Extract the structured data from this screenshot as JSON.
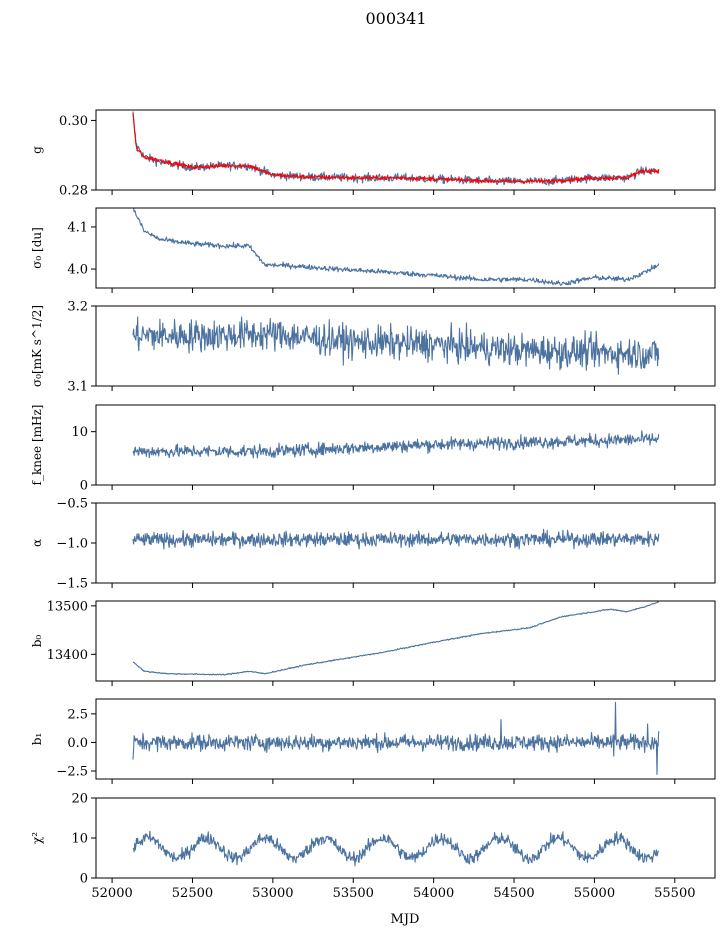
{
  "figure": {
    "title": "000341",
    "xlabel": "MJD"
  },
  "colors": {
    "main": "#4c72a0",
    "overlay": "#ff0000",
    "axes": "#000000"
  },
  "chart_data": [
    {
      "type": "line",
      "ylabel": "g",
      "xlim": [
        51900,
        55750
      ],
      "ylim": [
        0.28,
        0.303
      ],
      "yticks": [
        0.28,
        0.3
      ],
      "ytick_labels": [
        "0.28",
        "0.30"
      ],
      "series": [
        {
          "color": "#4c72a0",
          "x_range": [
            52130,
            55400
          ],
          "x": [
            52130,
            52150,
            52200,
            52300,
            52500,
            52700,
            52850,
            53000,
            53200,
            53500,
            53800,
            54100,
            54400,
            54700,
            55000,
            55200,
            55300,
            55400
          ],
          "y": [
            0.302,
            0.293,
            0.2895,
            0.288,
            0.2865,
            0.287,
            0.287,
            0.2843,
            0.2838,
            0.2835,
            0.2835,
            0.283,
            0.2825,
            0.2825,
            0.2835,
            0.2835,
            0.2855,
            0.2855
          ],
          "noise": 0.0006
        },
        {
          "color": "#ff0000",
          "x_range": [
            52130,
            55400
          ],
          "x": [
            52130,
            52150,
            52200,
            52300,
            52500,
            52700,
            52850,
            53000,
            53200,
            53500,
            53800,
            54100,
            54400,
            54700,
            55000,
            55200,
            55300,
            55400
          ],
          "y": [
            0.302,
            0.292,
            0.2895,
            0.2885,
            0.2865,
            0.287,
            0.287,
            0.2843,
            0.2838,
            0.2835,
            0.2835,
            0.283,
            0.2825,
            0.2825,
            0.2835,
            0.2835,
            0.2855,
            0.2855
          ],
          "noise": 0.0003
        }
      ]
    },
    {
      "type": "line",
      "ylabel": "σ₀ [du]",
      "xlim": [
        51900,
        55750
      ],
      "ylim": [
        3.955,
        4.145
      ],
      "yticks": [
        4.0,
        4.1
      ],
      "ytick_labels": [
        "4.0",
        "4.1"
      ],
      "series": [
        {
          "color": "#4c72a0",
          "x_range": [
            52130,
            55400
          ],
          "x": [
            52130,
            52200,
            52300,
            52500,
            52700,
            52850,
            52950,
            53100,
            53400,
            53700,
            54000,
            54300,
            54600,
            54800,
            55000,
            55200,
            55300,
            55400
          ],
          "y": [
            4.145,
            4.09,
            4.07,
            4.06,
            4.055,
            4.055,
            4.01,
            4.008,
            4.0,
            3.993,
            3.985,
            3.975,
            3.975,
            3.965,
            3.98,
            3.975,
            3.99,
            4.01
          ],
          "noise": 0.003
        }
      ]
    },
    {
      "type": "line",
      "ylabel": "σ₀[mK s^1/2]",
      "xlim": [
        51900,
        55750
      ],
      "ylim": [
        3.1,
        3.2
      ],
      "yticks": [
        3.1,
        3.2
      ],
      "ytick_labels": [
        "3.1",
        "3.2"
      ],
      "series": [
        {
          "color": "#4c72a0",
          "x_range": [
            52130,
            55400
          ],
          "x": [
            52130,
            52600,
            53000,
            53500,
            54000,
            54500,
            55000,
            55400
          ],
          "y": [
            3.163,
            3.163,
            3.165,
            3.155,
            3.152,
            3.145,
            3.142,
            3.14
          ],
          "noise": 0.01
        }
      ]
    },
    {
      "type": "line",
      "ylabel": "f_knee [mHz]",
      "xlim": [
        51900,
        55750
      ],
      "ylim": [
        0,
        15
      ],
      "yticks": [
        0,
        10
      ],
      "ytick_labels": [
        "0",
        "10"
      ],
      "series": [
        {
          "color": "#4c72a0",
          "x_range": [
            52130,
            55400
          ],
          "x": [
            52130,
            53000,
            54000,
            55400
          ],
          "y": [
            6.3,
            6.3,
            7.6,
            8.6
          ],
          "noise": 0.6
        }
      ]
    },
    {
      "type": "line",
      "ylabel": "α",
      "xlim": [
        51900,
        55750
      ],
      "ylim": [
        -1.5,
        -0.5
      ],
      "yticks": [
        -1.5,
        -1.0,
        -0.5
      ],
      "ytick_labels": [
        "−1.5",
        "−1.0",
        "−0.5"
      ],
      "series": [
        {
          "color": "#4c72a0",
          "x_range": [
            52130,
            55400
          ],
          "x": [
            52130,
            55400
          ],
          "y": [
            -0.96,
            -0.95
          ],
          "noise": 0.045
        }
      ]
    },
    {
      "type": "line",
      "ylabel": "b₀",
      "xlim": [
        51900,
        55750
      ],
      "ylim": [
        13345,
        13510
      ],
      "yticks": [
        13400,
        13500
      ],
      "ytick_labels": [
        "13400",
        "13500"
      ],
      "series": [
        {
          "color": "#4c72a0",
          "x_range": [
            52130,
            55400
          ],
          "x": [
            52130,
            52200,
            52350,
            52700,
            52850,
            52950,
            53200,
            53700,
            54000,
            54300,
            54600,
            54800,
            55000,
            55100,
            55200,
            55300,
            55400
          ],
          "y": [
            13385,
            13365,
            13360,
            13358,
            13365,
            13360,
            13378,
            13405,
            13425,
            13443,
            13455,
            13478,
            13488,
            13493,
            13488,
            13497,
            13508
          ],
          "noise": 0.6
        }
      ]
    },
    {
      "type": "line",
      "ylabel": "b₁",
      "xlim": [
        51900,
        55750
      ],
      "ylim": [
        -3.2,
        3.8
      ],
      "yticks": [
        -2.5,
        0.0,
        2.5
      ],
      "ytick_labels": [
        "−2.5",
        "0.0",
        "2.5"
      ],
      "series": [
        {
          "color": "#4c72a0",
          "x_range": [
            52130,
            55400
          ],
          "x": [
            52130,
            55400
          ],
          "y": [
            0.0,
            0.0
          ],
          "noise": 0.35,
          "spikes": [
            [
              52130,
              -1.5
            ],
            [
              54420,
              2.0
            ],
            [
              55130,
              3.5
            ],
            [
              55120,
              -1.2
            ],
            [
              55390,
              -2.8
            ],
            [
              55330,
              1.6
            ]
          ]
        }
      ]
    },
    {
      "type": "line",
      "ylabel": "χ²",
      "xlim": [
        51900,
        55750
      ],
      "ylim": [
        0,
        20
      ],
      "yticks": [
        0,
        10,
        20
      ],
      "ytick_labels": [
        "0",
        "10",
        "20"
      ],
      "xticks": [
        52000,
        52500,
        53000,
        53500,
        54000,
        54500,
        55000,
        55500
      ],
      "xtick_labels": [
        "52000",
        "52500",
        "53000",
        "53500",
        "54000",
        "54500",
        "55000",
        "55500"
      ],
      "series": [
        {
          "color": "#4c72a0",
          "x_range": [
            52130,
            55400
          ],
          "x": [
            52130,
            55400
          ],
          "y": [
            7.5,
            7.5
          ],
          "noise": 0.8,
          "oscillation": {
            "amplitude": 2.5,
            "period_days": 365
          }
        }
      ]
    }
  ]
}
